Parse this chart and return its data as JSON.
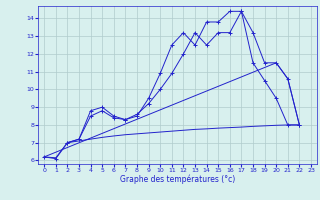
{
  "xlabel": "Graphe des températures (°c)",
  "background_color": "#d8f0ee",
  "grid_color": "#b0cccc",
  "line_color": "#2222cc",
  "xlim": [
    -0.5,
    23.5
  ],
  "ylim": [
    5.8,
    14.7
  ],
  "yticks": [
    6,
    7,
    8,
    9,
    10,
    11,
    12,
    13,
    14
  ],
  "xticks": [
    0,
    1,
    2,
    3,
    4,
    5,
    6,
    7,
    8,
    9,
    10,
    11,
    12,
    13,
    14,
    15,
    16,
    17,
    18,
    19,
    20,
    21,
    22,
    23
  ],
  "line1_x": [
    0,
    1,
    2,
    3,
    4,
    5,
    6,
    7,
    8,
    9,
    10,
    11,
    12,
    13,
    14,
    15,
    16,
    17,
    18,
    19,
    20,
    21,
    22
  ],
  "line1_y": [
    6.2,
    6.1,
    7.0,
    7.2,
    8.8,
    9.0,
    8.5,
    8.3,
    8.5,
    9.5,
    10.9,
    12.5,
    13.2,
    12.5,
    13.8,
    13.8,
    14.4,
    14.4,
    11.5,
    10.5,
    9.5,
    8.0,
    8.0
  ],
  "line2_x": [
    2,
    3,
    4,
    5,
    6,
    7,
    8,
    9,
    10,
    11,
    12,
    13,
    14,
    15,
    16,
    17,
    18,
    19,
    20,
    21,
    22
  ],
  "line2_y": [
    7.0,
    7.2,
    8.5,
    8.8,
    8.4,
    8.3,
    8.6,
    9.2,
    10.0,
    10.9,
    12.0,
    13.2,
    12.5,
    13.2,
    13.2,
    14.4,
    13.2,
    11.5,
    11.5,
    10.6,
    8.0
  ],
  "line3_x": [
    0,
    1,
    2,
    3,
    4,
    5,
    6,
    7,
    8,
    9,
    10,
    11,
    12,
    13,
    14,
    15,
    16,
    17,
    18,
    19,
    20,
    21,
    22
  ],
  "line3_y": [
    6.2,
    6.15,
    7.0,
    7.1,
    7.2,
    7.3,
    7.38,
    7.45,
    7.5,
    7.55,
    7.6,
    7.65,
    7.7,
    7.75,
    7.78,
    7.82,
    7.85,
    7.88,
    7.92,
    7.95,
    7.98,
    8.0,
    8.0
  ],
  "line4_x": [
    0,
    20,
    21,
    22
  ],
  "line4_y": [
    6.2,
    11.5,
    10.6,
    8.0
  ]
}
